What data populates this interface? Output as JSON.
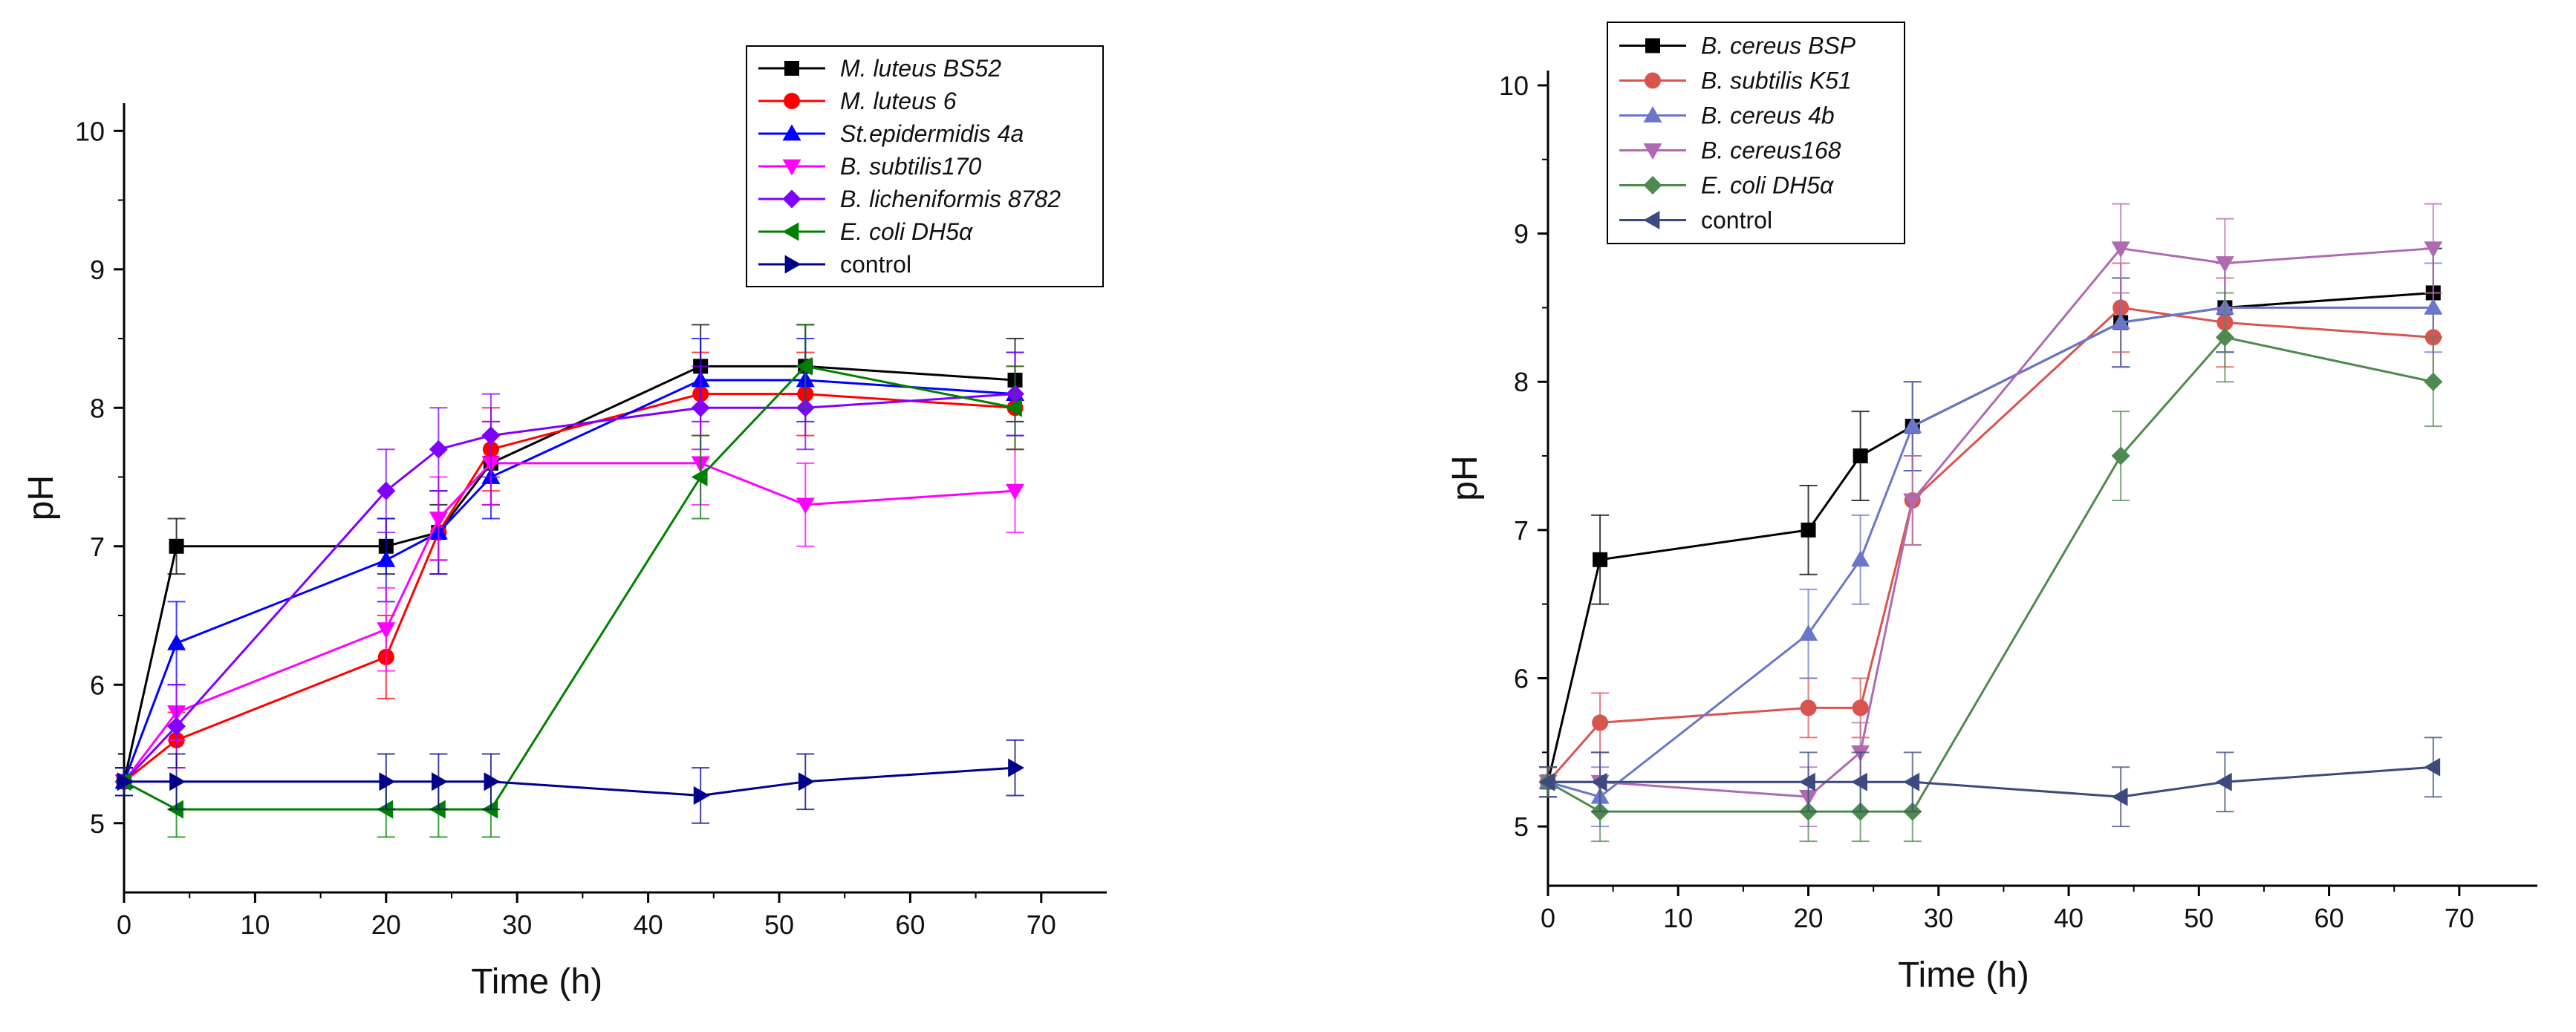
{
  "chart_data": [
    {
      "type": "line",
      "xlabel": "Time (h)",
      "ylabel": "pH",
      "xlim": [
        0,
        75
      ],
      "ylim": [
        4.5,
        10.2
      ],
      "xticks": [
        0,
        10,
        20,
        30,
        40,
        50,
        60,
        70
      ],
      "yticks": [
        5,
        6,
        7,
        8,
        9,
        10
      ],
      "legend_position": "top-right",
      "series": [
        {
          "name": "M. luteus BS52",
          "italic": true,
          "color": "#000000",
          "marker": "square",
          "x": [
            0,
            4,
            20,
            24,
            28,
            44,
            52,
            68
          ],
          "y": [
            5.3,
            7.0,
            7.0,
            7.1,
            7.6,
            8.3,
            8.3,
            8.2
          ],
          "err": [
            0.1,
            0.2,
            0.2,
            0.2,
            0.3,
            0.3,
            0.3,
            0.3
          ]
        },
        {
          "name": "M. luteus 6",
          "italic": true,
          "color": "#ff0000",
          "marker": "circle",
          "x": [
            0,
            4,
            20,
            24,
            28,
            44,
            52,
            68
          ],
          "y": [
            5.3,
            5.6,
            6.2,
            7.1,
            7.7,
            8.1,
            8.1,
            8.0
          ],
          "err": [
            0.1,
            0.2,
            0.3,
            0.3,
            0.3,
            0.3,
            0.3,
            0.3
          ]
        },
        {
          "name": "St.epidermidis 4a",
          "italic": true,
          "color": "#0000ff",
          "marker": "triangle-up",
          "x": [
            0,
            4,
            20,
            24,
            28,
            44,
            52,
            68
          ],
          "y": [
            5.3,
            6.3,
            6.9,
            7.1,
            7.5,
            8.2,
            8.2,
            8.1
          ],
          "err": [
            0.1,
            0.3,
            0.3,
            0.3,
            0.3,
            0.3,
            0.3,
            0.3
          ]
        },
        {
          "name": "B. subtilis170",
          "italic": true,
          "color": "#ff00ff",
          "marker": "triangle-down",
          "x": [
            0,
            4,
            20,
            24,
            28,
            44,
            52,
            68
          ],
          "y": [
            5.3,
            5.8,
            6.4,
            7.2,
            7.6,
            7.6,
            7.3,
            7.4
          ],
          "err": [
            0.1,
            0.2,
            0.3,
            0.3,
            0.3,
            0.3,
            0.3,
            0.3
          ]
        },
        {
          "name": "B. licheniformis 8782",
          "italic": true,
          "color": "#8000ff",
          "marker": "diamond",
          "x": [
            0,
            4,
            20,
            24,
            28,
            44,
            52,
            68
          ],
          "y": [
            5.3,
            5.7,
            7.4,
            7.7,
            7.8,
            8.0,
            8.0,
            8.1
          ],
          "err": [
            0.1,
            0.3,
            0.3,
            0.3,
            0.3,
            0.3,
            0.3,
            0.3
          ]
        },
        {
          "name": "E. coli DH5α",
          "italic": true,
          "color": "#008000",
          "marker": "triangle-left",
          "x": [
            0,
            4,
            20,
            24,
            28,
            44,
            52,
            68
          ],
          "y": [
            5.3,
            5.1,
            5.1,
            5.1,
            5.1,
            7.5,
            8.3,
            8.0
          ],
          "err": [
            0.1,
            0.2,
            0.2,
            0.2,
            0.2,
            0.3,
            0.3,
            0.3
          ]
        },
        {
          "name": "control",
          "italic": false,
          "color": "#00008b",
          "marker": "triangle-right",
          "x": [
            0,
            4,
            20,
            24,
            28,
            44,
            52,
            68
          ],
          "y": [
            5.3,
            5.3,
            5.3,
            5.3,
            5.3,
            5.2,
            5.3,
            5.4
          ],
          "err": [
            0.1,
            0.2,
            0.2,
            0.2,
            0.2,
            0.2,
            0.2,
            0.2
          ]
        }
      ]
    },
    {
      "type": "line",
      "xlabel": "Time (h)",
      "ylabel": "pH",
      "xlim": [
        0,
        76
      ],
      "ylim": [
        4.6,
        10.1
      ],
      "xticks": [
        0,
        10,
        20,
        30,
        40,
        50,
        60,
        70
      ],
      "yticks": [
        5,
        6,
        7,
        8,
        9,
        10
      ],
      "legend_position": "top-left",
      "series": [
        {
          "name": "B. cereus BSP",
          "italic": true,
          "color": "#000000",
          "marker": "square",
          "x": [
            0,
            4,
            20,
            24,
            28,
            44,
            52,
            68
          ],
          "y": [
            5.3,
            6.8,
            7.0,
            7.5,
            7.7,
            8.4,
            8.5,
            8.6
          ],
          "err": [
            0.1,
            0.3,
            0.3,
            0.3,
            0.3,
            0.3,
            0.3,
            0.3
          ]
        },
        {
          "name": "B. subtilis K51",
          "italic": true,
          "color": "#d9534f",
          "marker": "circle",
          "x": [
            0,
            4,
            20,
            24,
            28,
            44,
            52,
            68
          ],
          "y": [
            5.3,
            5.7,
            5.8,
            5.8,
            7.2,
            8.5,
            8.4,
            8.3
          ],
          "err": [
            0.1,
            0.2,
            0.2,
            0.2,
            0.3,
            0.3,
            0.3,
            0.3
          ]
        },
        {
          "name": "B. cereus 4b",
          "italic": true,
          "color": "#6a77c9",
          "marker": "triangle-up",
          "x": [
            0,
            4,
            20,
            24,
            28,
            44,
            52,
            68
          ],
          "y": [
            5.3,
            5.2,
            6.3,
            6.8,
            7.7,
            8.4,
            8.5,
            8.5
          ],
          "err": [
            0.1,
            0.2,
            0.3,
            0.3,
            0.3,
            0.3,
            0.3,
            0.3
          ]
        },
        {
          "name": "B. cereus168",
          "italic": true,
          "color": "#b06ab0",
          "marker": "triangle-down",
          "x": [
            0,
            4,
            20,
            24,
            28,
            44,
            52,
            68
          ],
          "y": [
            5.3,
            5.3,
            5.2,
            5.5,
            7.2,
            8.9,
            8.8,
            8.9
          ],
          "err": [
            0.1,
            0.2,
            0.2,
            0.2,
            0.3,
            0.3,
            0.3,
            0.3
          ]
        },
        {
          "name": "E. coli DH5α",
          "italic": true,
          "color": "#4e8a50",
          "marker": "diamond",
          "x": [
            0,
            4,
            20,
            24,
            28,
            44,
            52,
            68
          ],
          "y": [
            5.3,
            5.1,
            5.1,
            5.1,
            5.1,
            7.5,
            8.3,
            8.0
          ],
          "err": [
            0.1,
            0.2,
            0.2,
            0.2,
            0.2,
            0.3,
            0.3,
            0.3
          ]
        },
        {
          "name": "control",
          "italic": false,
          "color": "#3d4a80",
          "marker": "triangle-left",
          "x": [
            0,
            4,
            20,
            24,
            28,
            44,
            52,
            68
          ],
          "y": [
            5.3,
            5.3,
            5.3,
            5.3,
            5.3,
            5.2,
            5.3,
            5.4
          ],
          "err": [
            0.1,
            0.2,
            0.2,
            0.2,
            0.2,
            0.2,
            0.2,
            0.2
          ]
        }
      ]
    }
  ]
}
